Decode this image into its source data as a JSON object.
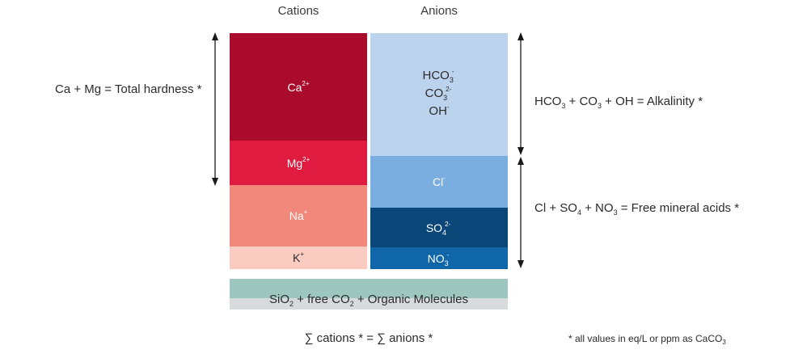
{
  "headers": {
    "cations": "Cations",
    "anions": "Anions"
  },
  "cations": {
    "ca": {
      "text": "Ca",
      "charge": "2+",
      "color": "#aa0b2c"
    },
    "mg": {
      "text": "Mg",
      "charge": "2+",
      "color": "#e01b40"
    },
    "na": {
      "text": "Na",
      "charge": "+",
      "color": "#f2877b"
    },
    "k": {
      "text": "K",
      "charge": "+",
      "color": "#f9cbc1"
    }
  },
  "anions": {
    "alk": {
      "hco3": {
        "base": "HCO",
        "sub": "3",
        "sup": "-"
      },
      "co3": {
        "base": "CO",
        "sub": "3",
        "sup": "2-"
      },
      "oh": {
        "base": "OH",
        "sup": "-"
      },
      "color": "#bcd3ee"
    },
    "cl": {
      "base": "Cl",
      "sup": "-",
      "color": "#7aade0"
    },
    "so4": {
      "base": "SO",
      "sub": "4",
      "sup": "2-",
      "color": "#0a4677"
    },
    "no3": {
      "base": "NO",
      "sub": "3",
      "sup": "-",
      "color": "#0f66a8"
    }
  },
  "bottom_bar": {
    "pre": "SiO",
    "sub1": "2",
    "mid": " + free CO",
    "sub2": "2",
    "post": " + Organic Molecules",
    "color_top": "#9cc6be",
    "color_bottom": "#d7dbdc"
  },
  "labels": {
    "hardness": "Ca + Mg = Total hardness *",
    "alkalinity": {
      "p1": "HCO",
      "s1": "3",
      "p2": " + CO",
      "s2": "3",
      "p3": " + OH = Alkalinity *"
    },
    "free_acids": {
      "p1": "Cl + SO",
      "s1": "4",
      "p2": " + NO",
      "s2": "3",
      "p3": " = Free mineral acids *"
    }
  },
  "balance": "∑ cations * = ∑ anions *",
  "footnote": {
    "text": "* all values in eq/L or ppm as CaCO",
    "sub": "3"
  }
}
